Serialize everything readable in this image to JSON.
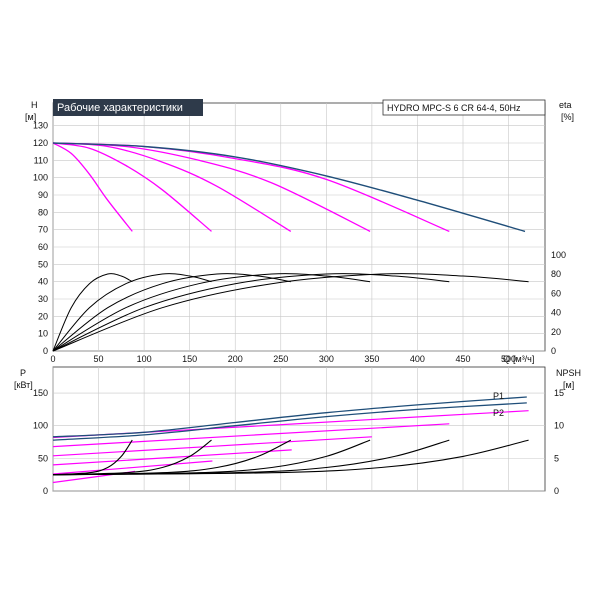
{
  "chart_data": [
    {
      "type": "line",
      "title": "Рабочие характеристики",
      "subtitle": "HYDRO MPC-S 6 CR 64-4, 50Hz",
      "ylabel": "H",
      "yunit": "[м]",
      "y2label": "eta",
      "y2unit": "[%]",
      "xlabel": "Q",
      "xunit": "[м³/ч]",
      "xlim": [
        0,
        540
      ],
      "ylim": [
        0,
        135
      ],
      "y2lim": [
        0,
        100
      ],
      "grid": true,
      "x_ticks": [
        "0",
        "50",
        "100",
        "150",
        "200",
        "250",
        "300",
        "350",
        "400",
        "450",
        "500"
      ],
      "y_ticks": [
        "0",
        "10",
        "20",
        "30",
        "40",
        "50",
        "60",
        "70",
        "80",
        "90",
        "100",
        "110",
        "120",
        "130"
      ],
      "y2_ticks": [
        "0",
        "20",
        "40",
        "60",
        "80",
        "100"
      ],
      "colors": {
        "single": "#ff00ff",
        "all": "#1f4e79",
        "eff": "#000000"
      },
      "head_all_pumps": {
        "x": [
          0,
          100,
          200,
          300,
          400,
          518
        ],
        "y": [
          120,
          118,
          112,
          101,
          87,
          69
        ]
      },
      "head_curves": [
        {
          "x": [
            0,
            20,
            40,
            60,
            87
          ],
          "y": [
            120,
            114,
            102,
            87,
            69
          ]
        },
        {
          "x": [
            0,
            40,
            80,
            120,
            174
          ],
          "y": [
            120,
            117,
            107,
            93,
            69
          ]
        },
        {
          "x": [
            0,
            60,
            120,
            180,
            261
          ],
          "y": [
            120,
            118,
            109,
            95,
            69
          ]
        },
        {
          "x": [
            0,
            80,
            160,
            240,
            348
          ],
          "y": [
            120,
            118,
            110,
            97,
            69
          ]
        },
        {
          "x": [
            0,
            100,
            200,
            300,
            435
          ],
          "y": [
            120,
            118,
            111,
            99,
            69
          ]
        }
      ],
      "eff_curves": [
        {
          "x": [
            0,
            20,
            40,
            60,
            75,
            87
          ],
          "y": [
            0,
            45,
            70,
            80,
            78,
            72
          ]
        },
        {
          "x": [
            0,
            40,
            80,
            120,
            150,
            174
          ],
          "y": [
            0,
            45,
            70,
            80,
            78,
            72
          ]
        },
        {
          "x": [
            0,
            60,
            120,
            180,
            225,
            261
          ],
          "y": [
            0,
            45,
            70,
            80,
            78,
            72
          ]
        },
        {
          "x": [
            0,
            80,
            160,
            240,
            300,
            348
          ],
          "y": [
            0,
            45,
            70,
            80,
            78,
            72
          ]
        },
        {
          "x": [
            0,
            100,
            200,
            300,
            375,
            435
          ],
          "y": [
            0,
            45,
            70,
            80,
            78,
            72
          ]
        },
        {
          "x": [
            0,
            120,
            240,
            360,
            450,
            522
          ],
          "y": [
            0,
            45,
            70,
            80,
            78,
            72
          ]
        }
      ]
    },
    {
      "type": "line",
      "ylabel": "P",
      "yunit": "[кВт]",
      "y2label": "NPSH",
      "y2unit": "[м]",
      "xlim": [
        0,
        540
      ],
      "ylim": [
        0,
        190
      ],
      "y2lim": [
        0,
        19
      ],
      "grid": true,
      "y_ticks": [
        "0",
        "50",
        "100",
        "150"
      ],
      "y2_ticks": [
        "0",
        "5",
        "10",
        "15"
      ],
      "series": [
        {
          "name": "P1",
          "x": [
            0,
            100,
            200,
            300,
            400,
            520
          ],
          "y": [
            83,
            90,
            105,
            120,
            132,
            144
          ]
        },
        {
          "name": "P2",
          "x": [
            0,
            100,
            200,
            300,
            400,
            520
          ],
          "y": [
            78,
            86,
            100,
            114,
            125,
            135
          ]
        }
      ],
      "power_single": [
        {
          "x": [
            0,
            90
          ],
          "y": [
            13,
            30
          ]
        },
        {
          "x": [
            0,
            175
          ],
          "y": [
            26,
            46
          ]
        },
        {
          "x": [
            0,
            262
          ],
          "y": [
            40,
            63
          ]
        },
        {
          "x": [
            0,
            350
          ],
          "y": [
            54,
            83
          ]
        },
        {
          "x": [
            0,
            435
          ],
          "y": [
            68,
            103
          ]
        },
        {
          "x": [
            0,
            522
          ],
          "y": [
            82,
            123
          ]
        }
      ],
      "npsh_curves": [
        {
          "x": [
            0,
            40,
            60,
            75,
            87
          ],
          "y": [
            2.5,
            2.8,
            3.6,
            5.3,
            7.8
          ]
        },
        {
          "x": [
            0,
            80,
            120,
            150,
            174
          ],
          "y": [
            2.5,
            2.8,
            3.6,
            5.3,
            7.8
          ]
        },
        {
          "x": [
            0,
            120,
            180,
            225,
            261
          ],
          "y": [
            2.5,
            2.8,
            3.6,
            5.3,
            7.8
          ]
        },
        {
          "x": [
            0,
            160,
            240,
            300,
            348
          ],
          "y": [
            2.5,
            2.8,
            3.6,
            5.3,
            7.8
          ]
        },
        {
          "x": [
            0,
            200,
            300,
            375,
            435
          ],
          "y": [
            2.5,
            2.8,
            3.6,
            5.3,
            7.8
          ]
        },
        {
          "x": [
            0,
            240,
            360,
            450,
            522
          ],
          "y": [
            2.5,
            2.8,
            3.6,
            5.3,
            7.8
          ]
        }
      ]
    }
  ]
}
